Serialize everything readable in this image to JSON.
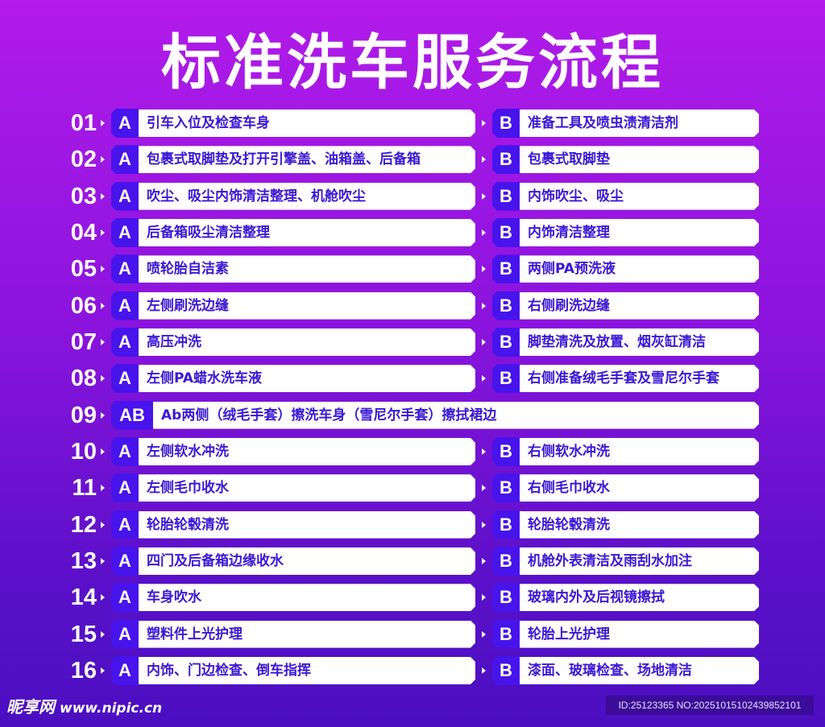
{
  "title": "标准洗车服务流程",
  "colors": {
    "background_top": "#b21be9",
    "background_bottom": "#4b0fc0",
    "badge": "#4714ec",
    "text": "#3a17d6"
  },
  "steps": [
    {
      "num": "01",
      "a_label": "A",
      "a": "引车入位及检查车身",
      "b_label": "B",
      "b": "准备工具及喷虫渍清洁剂"
    },
    {
      "num": "02",
      "a_label": "A",
      "a": "包裹式取脚垫及打开引擎盖、油箱盖、后备箱",
      "b_label": "B",
      "b": "包裹式取脚垫"
    },
    {
      "num": "03",
      "a_label": "A",
      "a": "吹尘、吸尘内饰清洁整理、机舱吹尘",
      "b_label": "B",
      "b": "内饰吹尘、吸尘"
    },
    {
      "num": "04",
      "a_label": "A",
      "a": "后备箱吸尘清洁整理",
      "b_label": "B",
      "b": "内饰清洁整理"
    },
    {
      "num": "05",
      "a_label": "A",
      "a": "喷轮胎自洁素",
      "b_label": "B",
      "b": "两侧PA预洗液"
    },
    {
      "num": "06",
      "a_label": "A",
      "a": "左侧刷洗边缝",
      "b_label": "B",
      "b": "右侧刷洗边缝"
    },
    {
      "num": "07",
      "a_label": "A",
      "a": "高压冲洗",
      "b_label": "B",
      "b": "脚垫清洗及放置、烟灰缸清洁"
    },
    {
      "num": "08",
      "a_label": "A",
      "a": "左侧PA蜡水洗车液",
      "b_label": "B",
      "b": "右侧准备绒毛手套及雪尼尔手套"
    },
    {
      "num": "09",
      "a_label": "AB",
      "a": "Ab两侧（绒毛手套）擦洗车身（雪尼尔手套）擦拭裙边"
    },
    {
      "num": "10",
      "a_label": "A",
      "a": "左侧软水冲洗",
      "b_label": "B",
      "b": "右侧软水冲洗"
    },
    {
      "num": "11",
      "a_label": "A",
      "a": "左侧毛巾收水",
      "b_label": "B",
      "b": "右侧毛巾收水"
    },
    {
      "num": "12",
      "a_label": "A",
      "a": "轮胎轮毂清洗",
      "b_label": "B",
      "b": "轮胎轮毂清洗"
    },
    {
      "num": "13",
      "a_label": "A",
      "a": "四门及后备箱边缘收水",
      "b_label": "B",
      "b": "机舱外表清洁及雨刮水加注"
    },
    {
      "num": "14",
      "a_label": "A",
      "a": "车身吹水",
      "b_label": "B",
      "b": "玻璃内外及后视镜擦拭"
    },
    {
      "num": "15",
      "a_label": "A",
      "a": "塑料件上光护理",
      "b_label": "B",
      "b": "轮胎上光护理"
    },
    {
      "num": "16",
      "a_label": "A",
      "a": "内饰、门边检查、倒车指挥",
      "b_label": "B",
      "b": "漆面、玻璃检查、场地清洁"
    }
  ],
  "watermark": {
    "logo": "昵享网",
    "site": "www.nipic.cn",
    "id_text": "ID:25123365 NO:20251015102439852101"
  }
}
